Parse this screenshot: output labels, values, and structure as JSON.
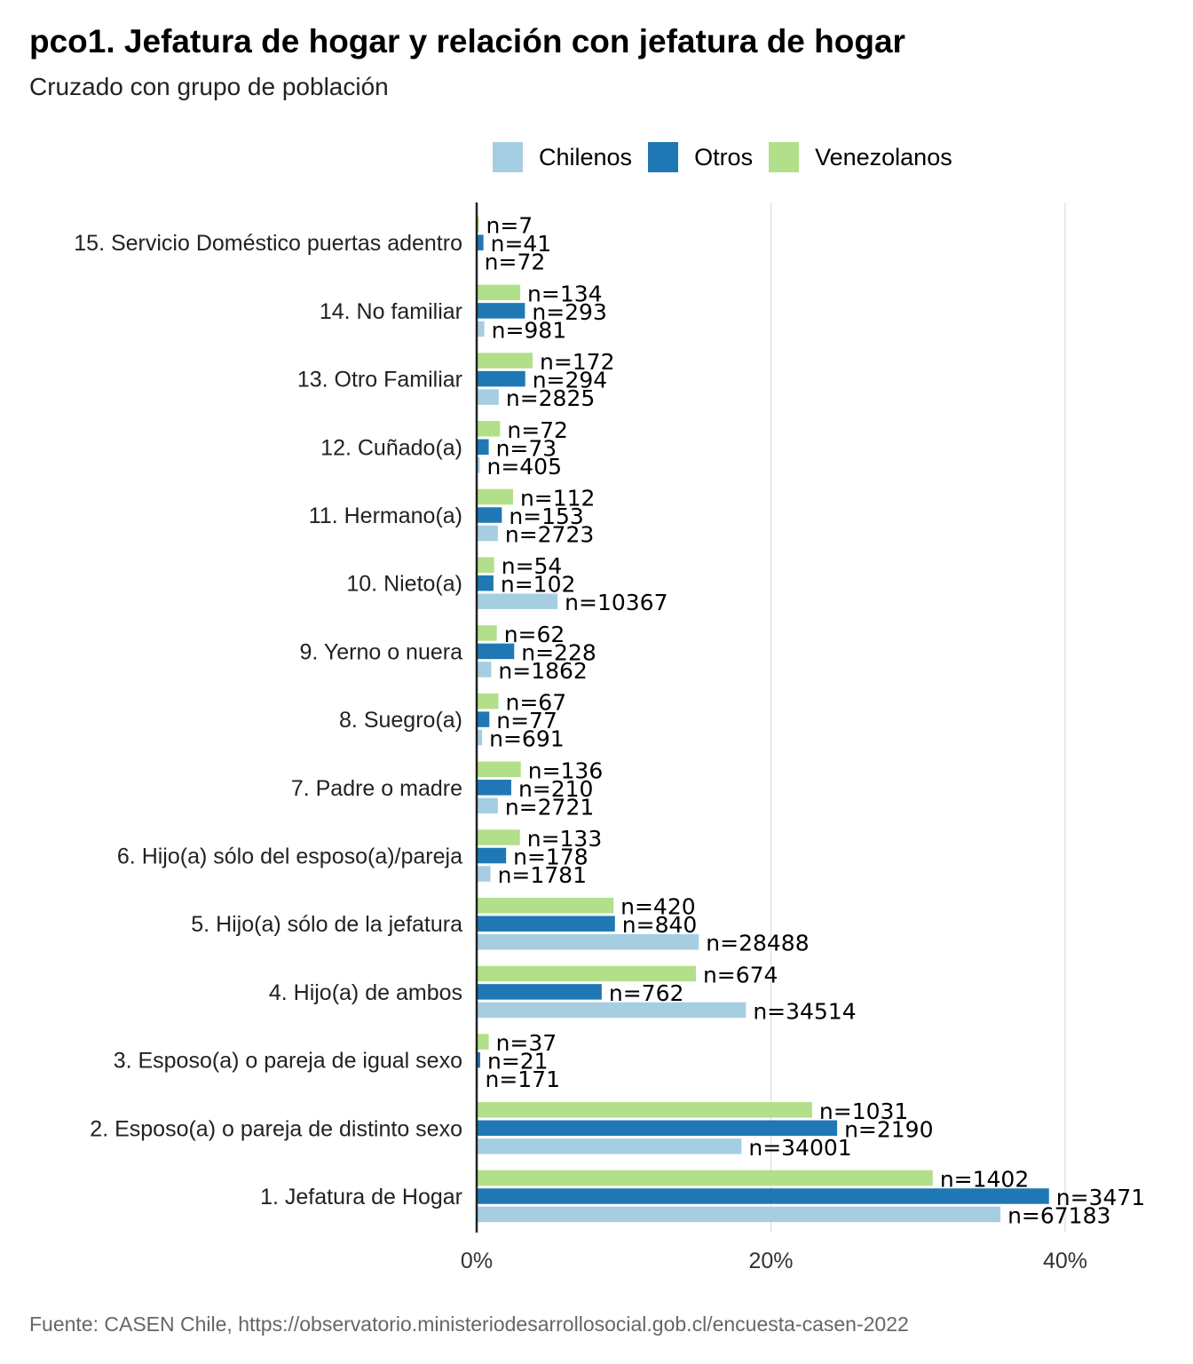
{
  "title": "pco1. Jefatura de hogar y relación con jefatura de hogar",
  "subtitle": "Cruzado con grupo de población",
  "caption": "Fuente: CASEN Chile, https://observatorio.ministeriodesarrollosocial.gob.cl/encuesta-casen-2022",
  "legend": [
    {
      "label": "Chilenos",
      "color": "#a6cee3"
    },
    {
      "label": "Otros",
      "color": "#1f78b4"
    },
    {
      "label": "Venezolanos",
      "color": "#b2df8a"
    }
  ],
  "chart_data": {
    "type": "bar",
    "orientation": "horizontal",
    "categories": [
      "1. Jefatura de Hogar",
      "2. Esposo(a) o pareja de distinto sexo",
      "3. Esposo(a) o pareja de igual sexo",
      "4. Hijo(a) de ambos",
      "5. Hijo(a) sólo de la jefatura",
      "6. Hijo(a) sólo del esposo(a)/pareja",
      "7. Padre o madre",
      "8. Suegro(a)",
      "9. Yerno o nuera",
      "10. Nieto(a)",
      "11. Hermano(a)",
      "12. Cuñado(a)",
      "13. Otro Familiar",
      "14. No familiar",
      "15. Servicio Doméstico puertas adentro"
    ],
    "series": [
      {
        "name": "Chilenos",
        "color": "#a6cee3",
        "values": [
          35.6,
          18.0,
          0.09,
          18.3,
          15.1,
          0.94,
          1.44,
          0.37,
          0.99,
          5.5,
          1.44,
          0.21,
          1.5,
          0.52,
          0.04
        ],
        "n": [
          "n=67183",
          "n=34001",
          "n=171",
          "n=34514",
          "n=28488",
          "n=1781",
          "n=2721",
          "n=691",
          "n=1862",
          "n=10367",
          "n=2723",
          "n=405",
          "n=2825",
          "n=981",
          "n=72"
        ]
      },
      {
        "name": "Otros",
        "color": "#1f78b4",
        "values": [
          38.9,
          24.5,
          0.24,
          8.5,
          9.4,
          2.0,
          2.35,
          0.86,
          2.55,
          1.14,
          1.71,
          0.82,
          3.3,
          3.28,
          0.46
        ],
        "n": [
          "n=3471",
          "n=2190",
          "n=21",
          "n=762",
          "n=840",
          "n=178",
          "n=210",
          "n=77",
          "n=228",
          "n=102",
          "n=153",
          "n=73",
          "n=294",
          "n=293",
          "n=41"
        ]
      },
      {
        "name": "Venezolanos",
        "color": "#b2df8a",
        "values": [
          31.0,
          22.8,
          0.82,
          14.9,
          9.3,
          2.94,
          3.0,
          1.48,
          1.37,
          1.19,
          2.47,
          1.59,
          3.8,
          2.96,
          0.15
        ],
        "n": [
          "n=1402",
          "n=1031",
          "n=37",
          "n=674",
          "n=420",
          "n=133",
          "n=136",
          "n=67",
          "n=62",
          "n=54",
          "n=112",
          "n=72",
          "n=172",
          "n=134",
          "n=7"
        ]
      }
    ],
    "xlim": [
      0,
      45
    ],
    "xticks": [
      "0%",
      "20%",
      "40%"
    ],
    "xtick_values": [
      0,
      20,
      40
    ],
    "xlabel": "",
    "ylabel": "",
    "grid": "vertical",
    "legend_position": "top"
  }
}
